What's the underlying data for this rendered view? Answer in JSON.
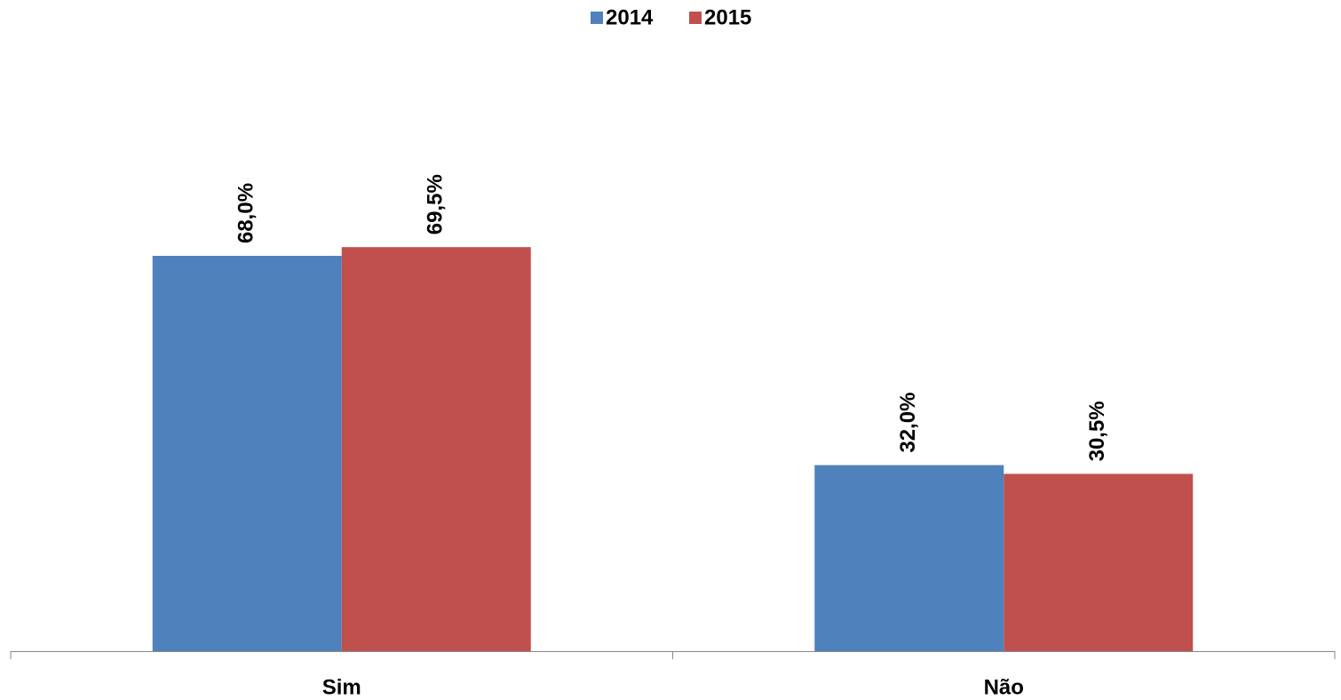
{
  "chart_data": {
    "type": "bar",
    "categories": [
      "Sim",
      "Não"
    ],
    "series": [
      {
        "name": "2014",
        "color": "#4f81bd",
        "values": [
          68.0,
          32.0
        ],
        "value_labels": [
          "68,0%",
          "32,0%"
        ]
      },
      {
        "name": "2015",
        "color": "#c0504d",
        "values": [
          69.5,
          30.5
        ],
        "value_labels": [
          "69,5%",
          "30,5%"
        ]
      }
    ],
    "ylim": [
      0,
      100
    ],
    "legend": "top"
  }
}
